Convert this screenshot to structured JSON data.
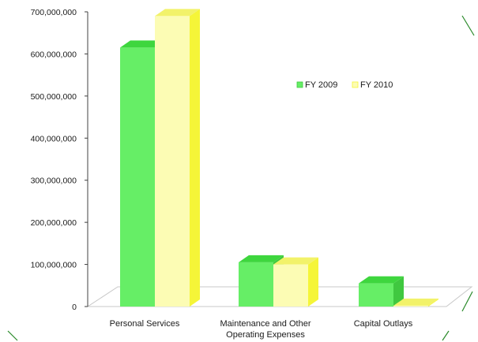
{
  "chart_data": {
    "type": "bar",
    "style": "3d-clustered-column",
    "categories": [
      "Personal Services",
      "Maintenance and Other|Operating Expenses",
      "Capital Outlays"
    ],
    "series": [
      {
        "name": "FY 2009",
        "values": [
          615000000,
          105000000,
          55000000
        ]
      },
      {
        "name": "FY 2010",
        "values": [
          690000000,
          100000000,
          2000000
        ]
      }
    ],
    "y_ticks": [
      "700,000,000",
      "600,000,000",
      "500,000,000",
      "400,000,000",
      "300,000,000",
      "200,000,000",
      "100,000,000",
      "0"
    ],
    "ylim": [
      0,
      700000000
    ],
    "grid": false,
    "legend_position": "right-center",
    "colors": {
      "FY 2009": {
        "front": "#66ee66",
        "top": "#3ed63e",
        "side": "#40c840"
      },
      "FY 2010": {
        "front": "#fcfcb4",
        "top": "#f2f26a",
        "side": "#f5f538"
      },
      "floor": "#c8c8c8",
      "axis": "#404040",
      "edge_marks": "#2a8a2a"
    }
  }
}
